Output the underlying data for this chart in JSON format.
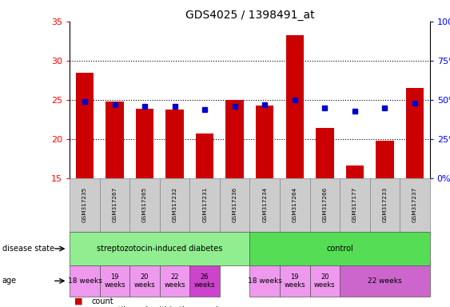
{
  "title": "GDS4025 / 1398491_at",
  "samples": [
    "GSM317235",
    "GSM317267",
    "GSM317265",
    "GSM317232",
    "GSM317231",
    "GSM317236",
    "GSM317234",
    "GSM317264",
    "GSM317266",
    "GSM317177",
    "GSM317233",
    "GSM317237"
  ],
  "counts": [
    28.5,
    24.8,
    23.9,
    23.8,
    20.7,
    25.0,
    24.3,
    33.3,
    21.4,
    16.6,
    19.8,
    26.5
  ],
  "percentiles": [
    49,
    47,
    46,
    46,
    44,
    46,
    47,
    50,
    45,
    43,
    45,
    48
  ],
  "y_min": 15,
  "y_max": 35,
  "y_ticks": [
    15,
    20,
    25,
    30,
    35
  ],
  "y2_ticks": [
    0,
    25,
    50,
    75,
    100
  ],
  "bar_color": "#cc0000",
  "dot_color": "#0000cc",
  "sample_bg_color": "#cccccc",
  "sample_border_color": "#888888",
  "ds_color_1": "#90ee90",
  "ds_color_2": "#55dd55",
  "age_color_light": "#ee99ee",
  "age_color_dark_26": "#cc44cc",
  "age_color_dark_22": "#cc66cc",
  "legend_count_color": "#cc0000",
  "legend_dot_color": "#0000cc"
}
